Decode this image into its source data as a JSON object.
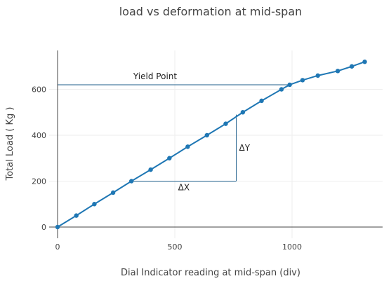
{
  "chart_data": {
    "type": "line",
    "title": "load vs deformation at mid-span",
    "xlabel": "Dial Indicator reading at mid-span (div)",
    "ylabel": "Total Load ( Kg )",
    "xlim": [
      -50,
      1380
    ],
    "ylim": [
      -30,
      780
    ],
    "x_ticks": [
      0,
      500,
      1000
    ],
    "y_ticks": [
      0,
      200,
      400,
      600
    ],
    "x_tick_labels": [
      "0",
      "500",
      "1000"
    ],
    "y_tick_labels": [
      "0",
      "200",
      "400",
      "600"
    ],
    "grid": true,
    "series": [
      {
        "color": "#1f77b4",
        "x": [
          0,
          80,
          157,
          237,
          315,
          397,
          477,
          555,
          637,
          717,
          790,
          870,
          955,
          990,
          1045,
          1110,
          1195,
          1255,
          1310
        ],
        "y": [
          0,
          50,
          100,
          150,
          200,
          250,
          300,
          350,
          400,
          450,
          500,
          550,
          600,
          620,
          640,
          660,
          680,
          700,
          720
        ]
      }
    ],
    "annotations": {
      "yield_point": {
        "label": "Yield Point",
        "y": 620,
        "x_end": 990
      },
      "delta_y": {
        "label": "ΔY",
        "x": 762,
        "y_from": 200,
        "y_to": 490
      },
      "delta_x": {
        "label": "ΔX",
        "y": 200,
        "x_from": 315,
        "x_to": 762
      }
    },
    "line_color": "#1f77b4",
    "annotation_color": "#1f5f8b"
  }
}
